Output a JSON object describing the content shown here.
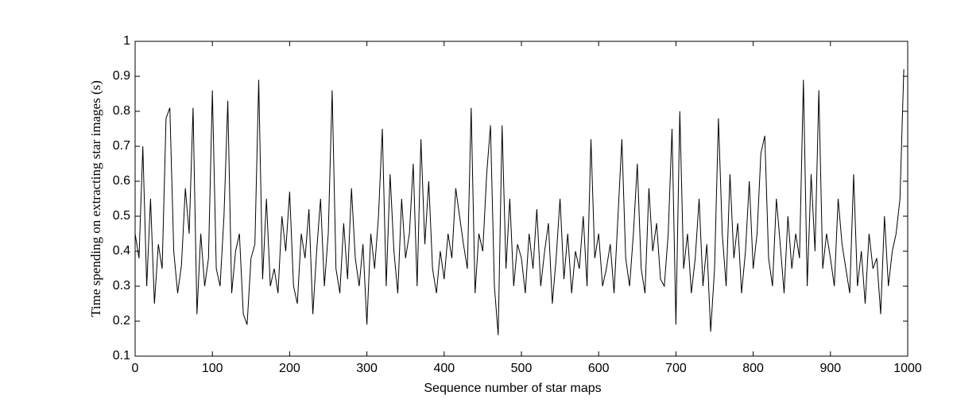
{
  "chart_data": {
    "type": "line",
    "xlabel": "Sequence number of star maps",
    "ylabel": "Time spending on extracting star images (s)",
    "color": "#000000",
    "xlim": [
      0,
      1000
    ],
    "xticks": [
      0,
      100,
      200,
      300,
      400,
      500,
      600,
      700,
      800,
      900,
      1000
    ],
    "ylim": [
      0.1,
      1
    ],
    "yticks": [
      0.1,
      0.2,
      0.3,
      0.4,
      0.5,
      0.6,
      0.7,
      0.8,
      0.9,
      1
    ],
    "x": [
      0,
      5,
      10,
      15,
      20,
      25,
      30,
      35,
      40,
      45,
      50,
      55,
      60,
      65,
      70,
      75,
      80,
      85,
      90,
      95,
      100,
      105,
      110,
      115,
      120,
      125,
      130,
      135,
      140,
      145,
      150,
      155,
      160,
      165,
      170,
      175,
      180,
      185,
      190,
      195,
      200,
      205,
      210,
      215,
      220,
      225,
      230,
      235,
      240,
      245,
      250,
      255,
      260,
      265,
      270,
      275,
      280,
      285,
      290,
      295,
      300,
      305,
      310,
      315,
      320,
      325,
      330,
      335,
      340,
      345,
      350,
      355,
      360,
      365,
      370,
      375,
      380,
      385,
      390,
      395,
      400,
      405,
      410,
      415,
      420,
      425,
      430,
      435,
      440,
      445,
      450,
      455,
      460,
      465,
      470,
      475,
      480,
      485,
      490,
      495,
      500,
      505,
      510,
      515,
      520,
      525,
      530,
      535,
      540,
      545,
      550,
      555,
      560,
      565,
      570,
      575,
      580,
      585,
      590,
      595,
      600,
      605,
      610,
      615,
      620,
      625,
      630,
      635,
      640,
      645,
      650,
      655,
      660,
      665,
      670,
      675,
      680,
      685,
      690,
      695,
      700,
      705,
      710,
      715,
      720,
      725,
      730,
      735,
      740,
      745,
      750,
      755,
      760,
      765,
      770,
      775,
      780,
      785,
      790,
      795,
      800,
      805,
      810,
      815,
      820,
      825,
      830,
      835,
      840,
      845,
      850,
      855,
      860,
      865,
      870,
      875,
      880,
      885,
      890,
      895,
      900,
      905,
      910,
      915,
      920,
      925,
      930,
      935,
      940,
      945,
      950,
      955,
      960,
      965,
      970,
      975,
      980,
      985,
      990,
      995
    ],
    "values": [
      0.45,
      0.38,
      0.7,
      0.3,
      0.55,
      0.25,
      0.42,
      0.35,
      0.78,
      0.81,
      0.4,
      0.28,
      0.36,
      0.58,
      0.45,
      0.81,
      0.22,
      0.45,
      0.3,
      0.38,
      0.86,
      0.35,
      0.3,
      0.5,
      0.83,
      0.28,
      0.4,
      0.45,
      0.22,
      0.19,
      0.38,
      0.42,
      0.89,
      0.32,
      0.55,
      0.3,
      0.35,
      0.28,
      0.5,
      0.4,
      0.57,
      0.3,
      0.25,
      0.45,
      0.38,
      0.52,
      0.22,
      0.4,
      0.55,
      0.3,
      0.45,
      0.86,
      0.35,
      0.28,
      0.48,
      0.32,
      0.58,
      0.38,
      0.3,
      0.42,
      0.19,
      0.45,
      0.35,
      0.5,
      0.75,
      0.3,
      0.62,
      0.4,
      0.28,
      0.55,
      0.38,
      0.45,
      0.65,
      0.3,
      0.72,
      0.42,
      0.6,
      0.35,
      0.28,
      0.4,
      0.32,
      0.45,
      0.38,
      0.58,
      0.5,
      0.42,
      0.35,
      0.81,
      0.28,
      0.45,
      0.4,
      0.62,
      0.76,
      0.3,
      0.16,
      0.76,
      0.35,
      0.55,
      0.3,
      0.42,
      0.38,
      0.28,
      0.45,
      0.35,
      0.52,
      0.3,
      0.4,
      0.48,
      0.25,
      0.38,
      0.55,
      0.32,
      0.45,
      0.28,
      0.4,
      0.35,
      0.5,
      0.3,
      0.72,
      0.38,
      0.45,
      0.3,
      0.35,
      0.42,
      0.28,
      0.5,
      0.72,
      0.38,
      0.3,
      0.45,
      0.65,
      0.35,
      0.28,
      0.58,
      0.4,
      0.48,
      0.32,
      0.3,
      0.45,
      0.75,
      0.19,
      0.8,
      0.35,
      0.45,
      0.28,
      0.38,
      0.55,
      0.3,
      0.42,
      0.17,
      0.35,
      0.78,
      0.45,
      0.3,
      0.62,
      0.38,
      0.48,
      0.28,
      0.4,
      0.6,
      0.35,
      0.45,
      0.68,
      0.73,
      0.38,
      0.3,
      0.55,
      0.42,
      0.28,
      0.5,
      0.35,
      0.45,
      0.38,
      0.89,
      0.3,
      0.62,
      0.4,
      0.86,
      0.35,
      0.45,
      0.38,
      0.3,
      0.55,
      0.42,
      0.35,
      0.28,
      0.62,
      0.3,
      0.4,
      0.25,
      0.45,
      0.35,
      0.38,
      0.22,
      0.5,
      0.3,
      0.4,
      0.45,
      0.55,
      0.92
    ]
  }
}
